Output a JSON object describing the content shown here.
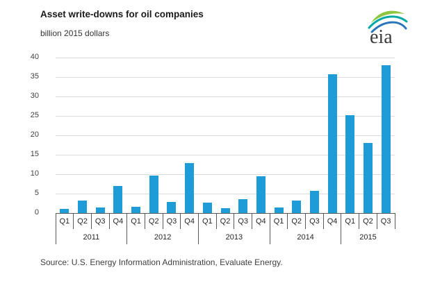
{
  "header": {
    "title": "Asset write-downs for oil companies",
    "subtitle": "billion 2015 dollars",
    "logo_text": "eia",
    "logo_colors": {
      "green": "#8dc63f",
      "teal": "#00a9a6",
      "blue": "#2a75bb",
      "text": "#3a3a3a"
    }
  },
  "chart_data": {
    "type": "bar",
    "title": "Asset write-downs for oil companies",
    "ylabel": "billion 2015 dollars",
    "ylim": [
      0,
      40
    ],
    "ytick_step": 5,
    "grid": true,
    "legend": "none",
    "bar_color": "#1e9cd8",
    "axis_color": "#595959",
    "grid_color": "#dcdcdc",
    "quarter_cycle": [
      "Q1",
      "Q2",
      "Q3",
      "Q4"
    ],
    "groups": [
      {
        "year": "2011",
        "quarters": [
          "Q1",
          "Q2",
          "Q3",
          "Q4"
        ],
        "values": [
          1.1,
          3.3,
          1.5,
          6.9
        ]
      },
      {
        "year": "2012",
        "quarters": [
          "Q1",
          "Q2",
          "Q3",
          "Q4"
        ],
        "values": [
          1.6,
          9.6,
          2.9,
          12.8
        ]
      },
      {
        "year": "2013",
        "quarters": [
          "Q1",
          "Q2",
          "Q3",
          "Q4"
        ],
        "values": [
          2.7,
          1.2,
          3.6,
          9.4
        ]
      },
      {
        "year": "2014",
        "quarters": [
          "Q1",
          "Q2",
          "Q3",
          "Q4"
        ],
        "values": [
          1.5,
          3.2,
          5.8,
          35.7
        ]
      },
      {
        "year": "2015",
        "quarters": [
          "Q1",
          "Q2",
          "Q3"
        ],
        "values": [
          25.2,
          18.0,
          38.0
        ]
      }
    ]
  },
  "footer": {
    "source": "Source:  U.S. Energy Information Administration, Evaluate Energy."
  }
}
